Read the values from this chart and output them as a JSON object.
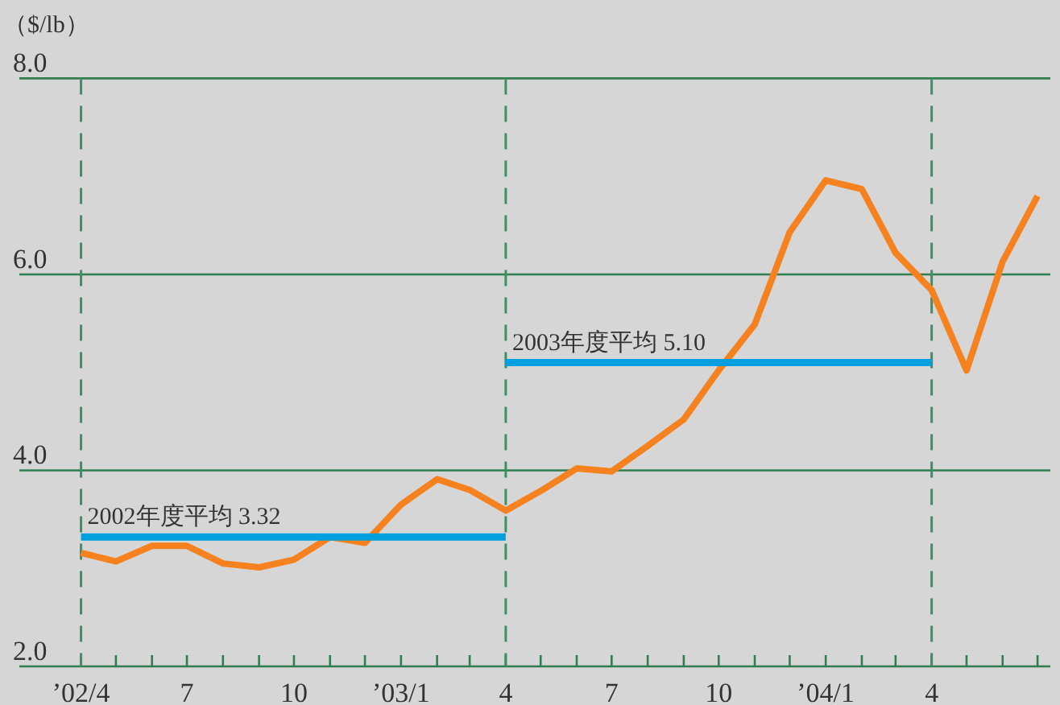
{
  "chart_data": {
    "type": "line",
    "ylabel": "（$/lb）",
    "x": [
      "2002-04",
      "2002-05",
      "2002-06",
      "2002-07",
      "2002-08",
      "2002-09",
      "2002-10",
      "2002-11",
      "2002-12",
      "2003-01",
      "2003-02",
      "2003-03",
      "2003-04",
      "2003-05",
      "2003-06",
      "2003-07",
      "2003-08",
      "2003-09",
      "2003-10",
      "2003-11",
      "2003-12",
      "2004-01",
      "2004-02",
      "2004-03",
      "2004-04",
      "2004-05",
      "2004-06",
      "2004-07"
    ],
    "xlim": [
      "2002-02-07",
      "2004-07-12"
    ],
    "xticks": [
      {
        "value": "2002-04",
        "label": "’02/4"
      },
      {
        "value": "2002-05",
        "label": null
      },
      {
        "value": "2002-06",
        "label": null
      },
      {
        "value": "2002-07",
        "label": "7"
      },
      {
        "value": "2002-08",
        "label": null
      },
      {
        "value": "2002-09",
        "label": null
      },
      {
        "value": "2002-10",
        "label": "10"
      },
      {
        "value": "2002-11",
        "label": null
      },
      {
        "value": "2002-12",
        "label": null
      },
      {
        "value": "2003-01",
        "label": "’03/1"
      },
      {
        "value": "2003-02",
        "label": null
      },
      {
        "value": "2003-03",
        "label": null
      },
      {
        "value": "2003-04",
        "label": "4"
      },
      {
        "value": "2003-05",
        "label": null
      },
      {
        "value": "2003-06",
        "label": null
      },
      {
        "value": "2003-07",
        "label": "7"
      },
      {
        "value": "2003-08",
        "label": null
      },
      {
        "value": "2003-09",
        "label": null
      },
      {
        "value": "2003-10",
        "label": "10"
      },
      {
        "value": "2003-11",
        "label": null
      },
      {
        "value": "2003-12",
        "label": null
      },
      {
        "value": "2004-01",
        "label": "’04/1"
      },
      {
        "value": "2004-02",
        "label": null
      },
      {
        "value": "2004-03",
        "label": null
      },
      {
        "value": "2004-04",
        "label": "4"
      },
      {
        "value": "2004-05",
        "label": null
      },
      {
        "value": "2004-06",
        "label": null
      },
      {
        "value": "2004-07",
        "label": null
      }
    ],
    "ylim": [
      2,
      8
    ],
    "yticks": [
      {
        "value": 2,
        "label": "2.0"
      },
      {
        "value": 4,
        "label": "4.0"
      },
      {
        "value": 6,
        "label": "6.0"
      },
      {
        "value": 8,
        "label": "8.0"
      }
    ],
    "grid": "y",
    "series": [
      {
        "color": "#f5821f",
        "values": [
          3.16,
          3.07,
          3.23,
          3.23,
          3.05,
          3.01,
          3.09,
          3.32,
          3.26,
          3.65,
          3.91,
          3.8,
          3.59,
          3.79,
          4.02,
          3.99,
          4.25,
          4.52,
          5.02,
          5.49,
          6.43,
          6.96,
          6.87,
          6.22,
          5.84,
          5.02,
          6.13,
          6.8
        ]
      },
      {
        "name": "2002年度平均 3.32",
        "color": "#00a0e0",
        "values": [
          3.32,
          3.32,
          3.32,
          3.32,
          3.32,
          3.32,
          3.32,
          3.32,
          3.32,
          3.32,
          3.32,
          3.32,
          3.32,
          null,
          null,
          null,
          null,
          null,
          null,
          null,
          null,
          null,
          null,
          null,
          null,
          null,
          null,
          null
        ]
      },
      {
        "name": "2003年度平均 5.10",
        "color": "#00a0e0",
        "values": [
          null,
          null,
          null,
          null,
          null,
          null,
          null,
          null,
          null,
          null,
          null,
          null,
          5.1,
          5.1,
          5.1,
          5.1,
          5.1,
          5.1,
          5.1,
          5.1,
          5.1,
          5.1,
          5.1,
          5.1,
          5.1,
          null,
          null,
          null
        ]
      }
    ],
    "ref_lines": [
      {
        "axis": "x",
        "value": "2002-04",
        "color": "#3f8f63",
        "line_style": "dashed"
      },
      {
        "axis": "x",
        "value": "2003-04",
        "color": "#3f8f63",
        "line_style": "dashed"
      },
      {
        "axis": "x",
        "value": "2004-04",
        "color": "#3f8f63",
        "line_style": "dashed"
      }
    ]
  }
}
